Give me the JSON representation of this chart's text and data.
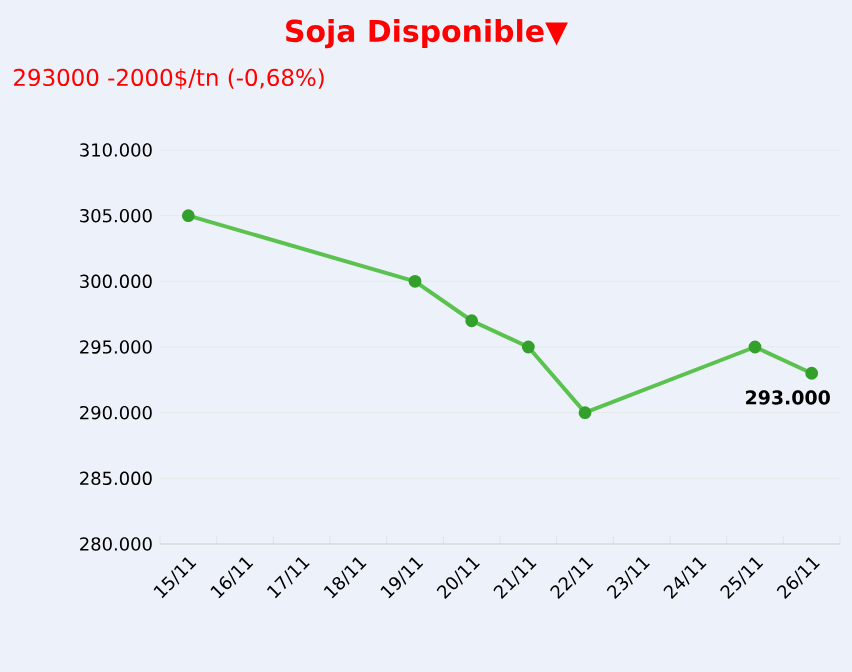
{
  "chart_data": {
    "type": "line",
    "title": "Soja Disponible▼",
    "subtitle": "293000 -2000$/tn (-0,68%)",
    "categories": [
      "15/11",
      "16/11",
      "17/11",
      "18/11",
      "19/11",
      "20/11",
      "21/11",
      "22/11",
      "23/11",
      "24/11",
      "25/11",
      "26/11"
    ],
    "series": [
      {
        "color": "#5bc24f",
        "values": [
          305000,
          null,
          null,
          null,
          300000,
          297000,
          295000,
          290000,
          null,
          null,
          295000,
          293000
        ],
        "value_labels": [
          null,
          null,
          null,
          null,
          null,
          null,
          null,
          null,
          null,
          null,
          null,
          "293.000"
        ]
      }
    ],
    "ylim": [
      280000,
      310000
    ],
    "yticks": [
      {
        "value": 280000,
        "label": "280.000"
      },
      {
        "value": 285000,
        "label": "285.000"
      },
      {
        "value": 290000,
        "label": "290.000"
      },
      {
        "value": 295000,
        "label": "295.000"
      },
      {
        "value": 300000,
        "label": "300.000"
      },
      {
        "value": 305000,
        "label": "305.000"
      },
      {
        "value": 310000,
        "label": "310.000"
      }
    ],
    "grid": "y",
    "marker": "circle",
    "line_style": "solid"
  }
}
